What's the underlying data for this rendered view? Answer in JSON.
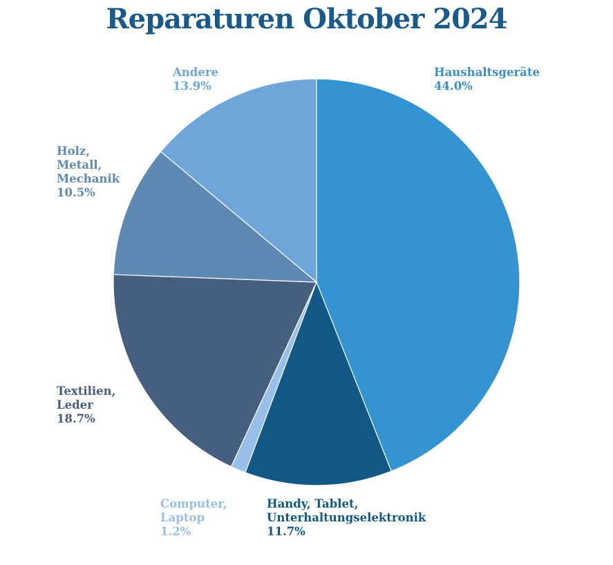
{
  "chart_data": {
    "type": "pie",
    "title": "Reparaturen Oktober 2024",
    "title_color": "#1a5a8a",
    "slices": [
      {
        "label_lines": [
          "Haushaltsgeräte"
        ],
        "value": 44.0,
        "value_text": "44.0%",
        "color": "#3493d1"
      },
      {
        "label_lines": [
          "Handy, Tablet,",
          "Unterhaltungselektronik"
        ],
        "value": 11.7,
        "value_text": "11.7%",
        "color": "#115886"
      },
      {
        "label_lines": [
          "Computer,",
          "Laptop"
        ],
        "value": 1.2,
        "value_text": "1.2%",
        "color": "#98bfe9"
      },
      {
        "label_lines": [
          "Textilien,",
          "Leder"
        ],
        "value": 18.7,
        "value_text": "18.7%",
        "color": "#465f7e"
      },
      {
        "label_lines": [
          "Holz,",
          "Metall,",
          "Mechanik"
        ],
        "value": 10.5,
        "value_text": "10.5%",
        "color": "#5e89b3"
      },
      {
        "label_lines": [
          "Andere"
        ],
        "value": 13.9,
        "value_text": "13.9%",
        "color": "#6ea6d9"
      }
    ],
    "start_angle_deg": 0,
    "direction": "clockwise",
    "label_colors": [
      "#3a8fcb",
      "#115886",
      "#98bfe9",
      "#465f7e",
      "#5e89b3",
      "#6ea6d9"
    ]
  }
}
